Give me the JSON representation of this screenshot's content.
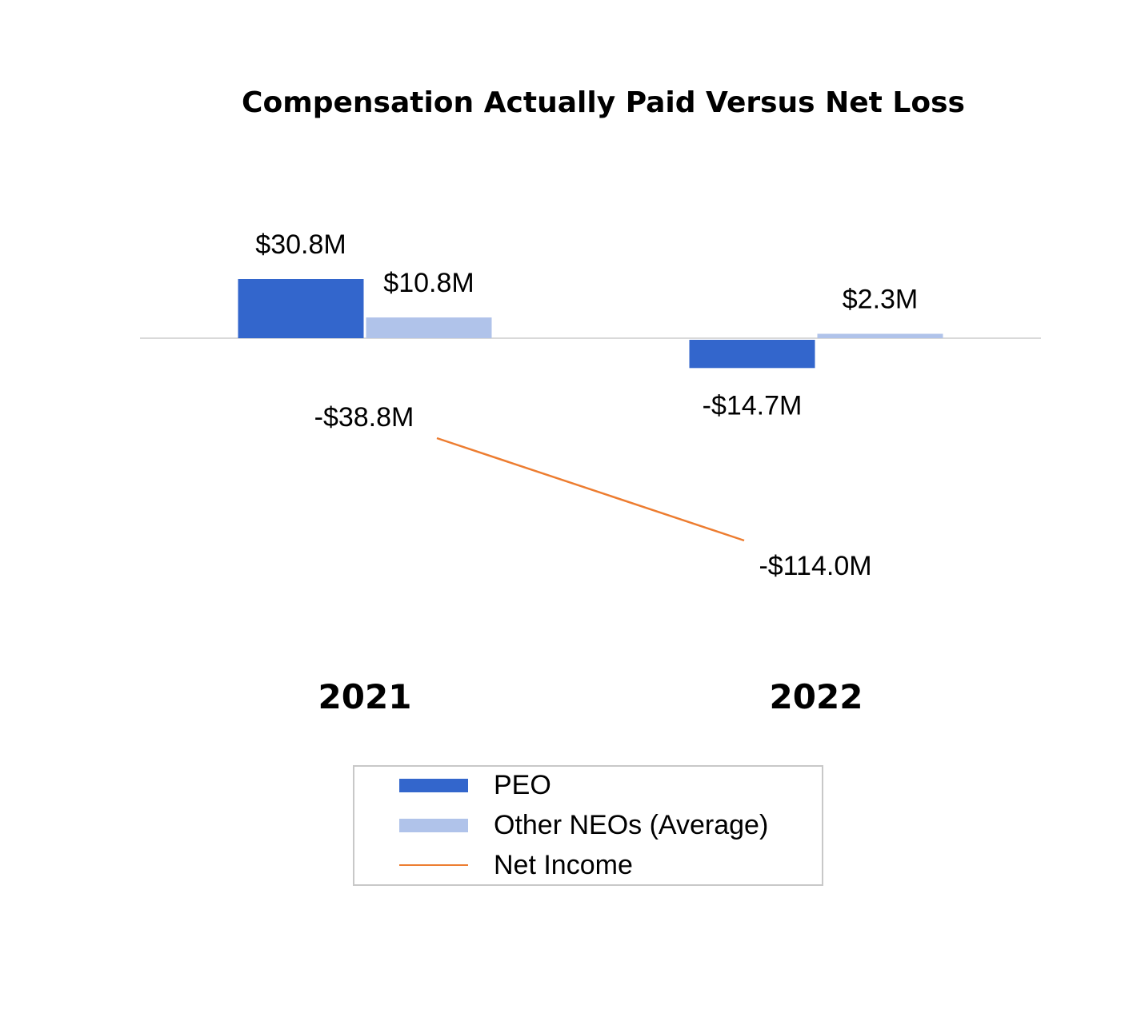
{
  "chart_data": {
    "type": "bar",
    "title": "Compensation Actually Paid Versus Net Loss",
    "categories": [
      "2021",
      "2022"
    ],
    "series": [
      {
        "name": "PEO",
        "kind": "bar",
        "color": "#3366cc",
        "values": [
          30.8,
          -14.7
        ],
        "labels": [
          "$30.8M",
          "-$14.7M"
        ]
      },
      {
        "name": "Other NEOs (Average)",
        "kind": "bar",
        "color": "#b0c3ea",
        "values": [
          10.8,
          2.3
        ],
        "labels": [
          "$10.8M",
          "$2.3M"
        ]
      },
      {
        "name": "Net Income",
        "kind": "line",
        "color": "#ed7d31",
        "values": [
          -38.8,
          -114.0
        ],
        "labels": [
          "-$38.8M",
          "-$114.0M"
        ]
      }
    ],
    "bar_scale_domain": [
      -14.7,
      30.8
    ],
    "line_scale_domain": [
      -114.0,
      -38.8
    ],
    "legend_position": "bottom",
    "grid": false
  }
}
